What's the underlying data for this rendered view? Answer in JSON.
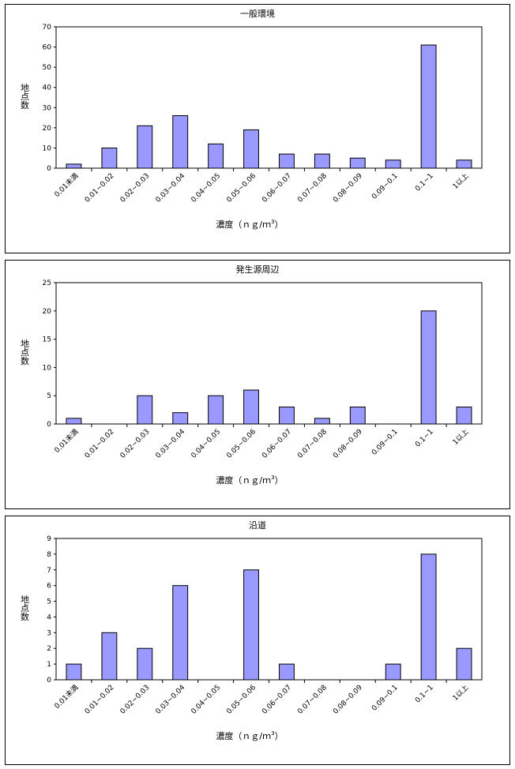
{
  "chart_data": [
    {
      "type": "bar",
      "title": "一般環境",
      "xlabel_main": "濃度（ｎｇ/ｍ",
      "xlabel_sup": "3",
      "xlabel_end": "）",
      "ylabel": "地点数",
      "ylim": [
        0,
        70
      ],
      "yticks": [
        0,
        10,
        20,
        30,
        40,
        50,
        60,
        70
      ],
      "categories": [
        "0.01未満",
        "0.01~0.02",
        "0.02~0.03",
        "0.03~0.04",
        "0.04~0.05",
        "0.05~0.06",
        "0.06~0.07",
        "0.07~0.08",
        "0.08~0.09",
        "0.09~0.1",
        "0.1~1",
        "1以上"
      ],
      "values": [
        2,
        10,
        21,
        26,
        12,
        19,
        7,
        7,
        5,
        4,
        61,
        4
      ],
      "bar_color": "#9999ff"
    },
    {
      "type": "bar",
      "title": "発生源周辺",
      "xlabel_main": "濃度（ｎｇ/ｍ",
      "xlabel_sup": "3",
      "xlabel_end": "）",
      "ylabel": "地点数",
      "ylim": [
        0,
        25
      ],
      "yticks": [
        0,
        5,
        10,
        15,
        20,
        25
      ],
      "categories": [
        "0.01未満",
        "0.01~0.02",
        "0.02~0.03",
        "0.03~0.04",
        "0.04~0.05",
        "0.05~0.06",
        "0.06~0.07",
        "0.07~0.08",
        "0.08~0.09",
        "0.09~0.1",
        "0.1~1",
        "1以上"
      ],
      "values": [
        1,
        0,
        5,
        2,
        5,
        6,
        3,
        1,
        3,
        0,
        20,
        3
      ],
      "bar_color": "#9999ff"
    },
    {
      "type": "bar",
      "title": "沿道",
      "xlabel_main": "濃度（ｎｇ/ｍ",
      "xlabel_sup": "3",
      "xlabel_end": "）",
      "ylabel": "地点数",
      "ylim": [
        0,
        9
      ],
      "yticks": [
        0,
        1,
        2,
        3,
        4,
        5,
        6,
        7,
        8,
        9
      ],
      "categories": [
        "0.01未満",
        "0.01~0.02",
        "0.02~0.03",
        "0.03~0.04",
        "0.04~0.05",
        "0.05~0.06",
        "0.06~0.07",
        "0.07~0.08",
        "0.08~0.09",
        "0.09~0.1",
        "0.1~1",
        "1以上"
      ],
      "values": [
        1,
        3,
        2,
        6,
        0,
        7,
        1,
        0,
        0,
        1,
        8,
        2
      ],
      "bar_color": "#9999ff"
    }
  ]
}
